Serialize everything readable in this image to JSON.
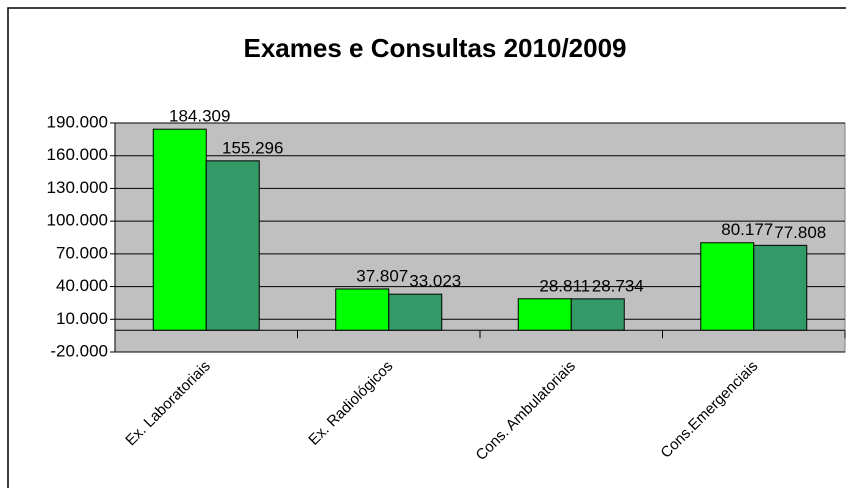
{
  "chart_data": {
    "type": "bar",
    "title": "Exames e Consultas 2010/2009",
    "categories": [
      "Ex. Laboratoriais",
      "Ex. Radiológicos",
      "Cons. Ambulatoriais",
      "Cons.Emergenciais"
    ],
    "series": [
      {
        "color": "#00ff00",
        "values": [
          184309,
          37807,
          28811,
          80177
        ],
        "value_labels": [
          "184.309",
          "37.807",
          "28.811",
          "80.177"
        ]
      },
      {
        "color": "#339966",
        "values": [
          155296,
          33023,
          28734,
          77808
        ],
        "value_labels": [
          "155.296",
          "33.023",
          "28.734",
          "77.808"
        ]
      }
    ],
    "ylim": [
      -20000,
      190000
    ],
    "yticks": [
      {
        "value": -20000,
        "label": "-20.000"
      },
      {
        "value": 10000,
        "label": "10.000"
      },
      {
        "value": 40000,
        "label": "40.000"
      },
      {
        "value": 70000,
        "label": "70.000"
      },
      {
        "value": 100000,
        "label": "100.000"
      },
      {
        "value": 130000,
        "label": "130.000"
      },
      {
        "value": 160000,
        "label": "160.000"
      },
      {
        "value": 190000,
        "label": "190.000"
      }
    ],
    "grid": true
  }
}
